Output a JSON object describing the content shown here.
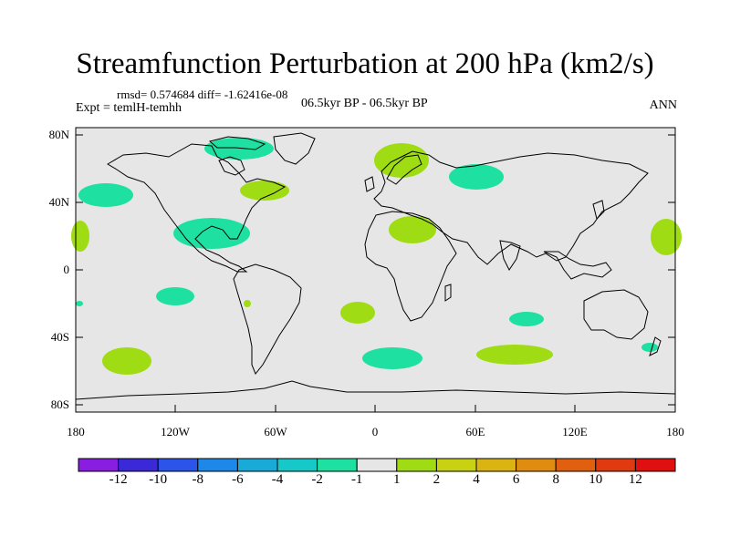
{
  "title": "Streamfunction Perturbation at 200 hPa (km2/s)",
  "stats_line": "rmsd= 0.574684 diff= -1.62416e-08",
  "experiment": "Expt = temlH-temhh",
  "period": "06.5kyr BP - 06.5kyr BP",
  "season": "ANN",
  "y_ticks": [
    "80N",
    "40N",
    "0",
    "40S",
    "80S"
  ],
  "x_ticks": [
    "180",
    "120W",
    "60W",
    "0",
    "60E",
    "120E",
    "180"
  ],
  "colorbar": {
    "labels": [
      "-12",
      "-10",
      "-8",
      "-6",
      "-4",
      "-2",
      "-1",
      "1",
      "2",
      "4",
      "6",
      "8",
      "10",
      "12"
    ],
    "colors": [
      "#8a1ee0",
      "#3b28d6",
      "#2a55e8",
      "#1e88e8",
      "#1aaad8",
      "#16c8c8",
      "#1ee0a0",
      "#e6e6e6",
      "#a0dc14",
      "#c8d212",
      "#dcb412",
      "#e08c10",
      "#e06010",
      "#e03a10",
      "#e01010"
    ]
  },
  "colors": {
    "land_fill": "#e6e6e6",
    "neg_anomaly": "#1ee0a0",
    "pos_anomaly": "#a0dc14",
    "coastline": "#000000"
  }
}
